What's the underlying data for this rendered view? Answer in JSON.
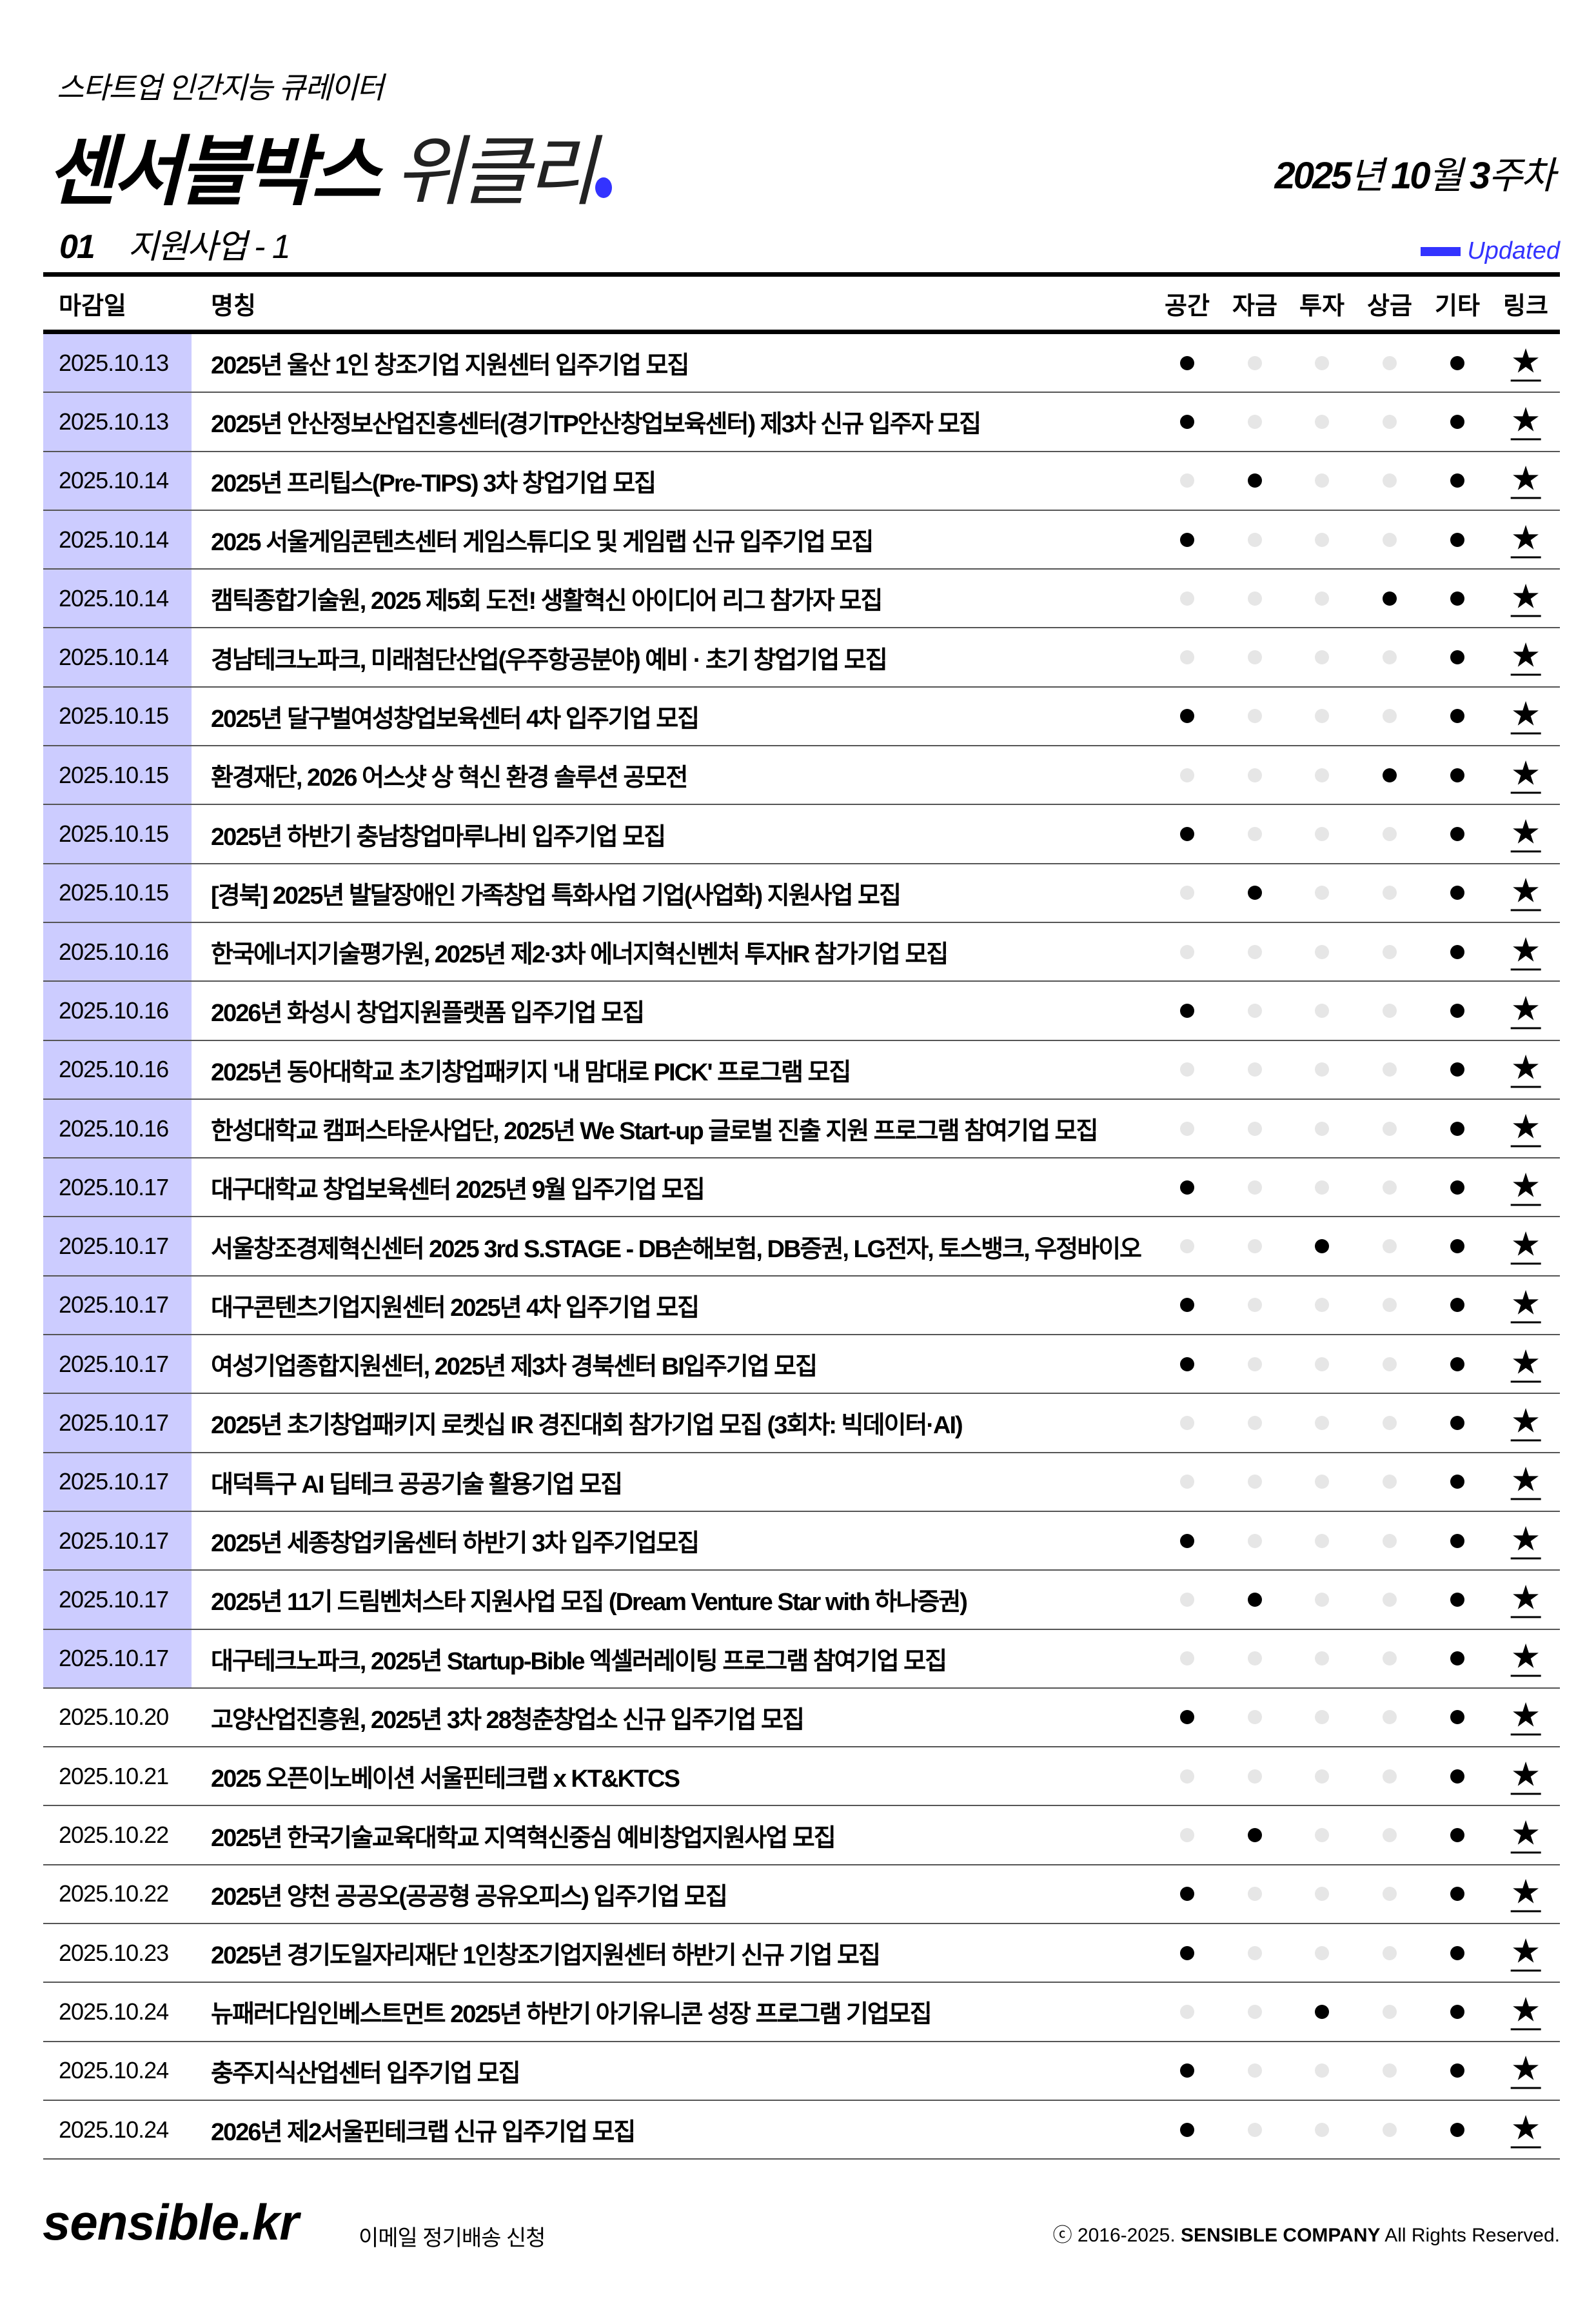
{
  "header": {
    "subtitle": "스타트업 인간지능 큐레이터",
    "title_bold": "센서블박스",
    "title_light": "위클리",
    "week_year": "2025",
    "week_year_unit": "년",
    "week_month": "10",
    "week_month_unit": "월",
    "week_num": "3",
    "week_num_unit": "주차"
  },
  "section": {
    "number": "01",
    "title": "지원사업",
    "suffix": "- 1",
    "updated_label": "Updated"
  },
  "colors": {
    "accent": "#3333ff",
    "updated_date_bg": "#ccccff"
  },
  "table": {
    "columns": {
      "date": "마감일",
      "name": "명칭",
      "space": "공간",
      "fund": "자금",
      "invest": "투자",
      "prize": "상금",
      "etc": "기타",
      "link": "링크"
    },
    "link_icon": "star-icon",
    "rows": [
      {
        "date": "2025.10.13",
        "name": "2025년 울산 1인 창조기업 지원센터 입주기업 모집",
        "updated": true,
        "flags": [
          1,
          0,
          0,
          0,
          1
        ]
      },
      {
        "date": "2025.10.13",
        "name": "2025년 안산정보산업진흥센터(경기TP안산창업보육센터) 제3차 신규 입주자 모집",
        "updated": true,
        "flags": [
          1,
          0,
          0,
          0,
          1
        ]
      },
      {
        "date": "2025.10.14",
        "name": "2025년 프리팁스(Pre-TIPS) 3차 창업기업 모집",
        "updated": true,
        "flags": [
          0,
          1,
          0,
          0,
          1
        ]
      },
      {
        "date": "2025.10.14",
        "name": "2025 서울게임콘텐츠센터 게임스튜디오 및 게임랩 신규 입주기업 모집",
        "updated": true,
        "flags": [
          1,
          0,
          0,
          0,
          1
        ]
      },
      {
        "date": "2025.10.14",
        "name": "캠틱종합기술원, 2025 제5회 도전! 생활혁신 아이디어 리그 참가자 모집",
        "updated": true,
        "flags": [
          0,
          0,
          0,
          1,
          1
        ]
      },
      {
        "date": "2025.10.14",
        "name": "경남테크노파크, 미래첨단산업(우주항공분야) 예비 · 초기 창업기업 모집",
        "updated": true,
        "flags": [
          0,
          0,
          0,
          0,
          1
        ]
      },
      {
        "date": "2025.10.15",
        "name": "2025년 달구벌여성창업보육센터 4차 입주기업 모집",
        "updated": true,
        "flags": [
          1,
          0,
          0,
          0,
          1
        ]
      },
      {
        "date": "2025.10.15",
        "name": "환경재단, 2026 어스샷 상 혁신 환경 솔루션 공모전",
        "updated": true,
        "flags": [
          0,
          0,
          0,
          1,
          1
        ]
      },
      {
        "date": "2025.10.15",
        "name": "2025년 하반기 충남창업마루나비 입주기업 모집",
        "updated": true,
        "flags": [
          1,
          0,
          0,
          0,
          1
        ]
      },
      {
        "date": "2025.10.15",
        "name": "[경북] 2025년 발달장애인 가족창업 특화사업 기업(사업화) 지원사업 모집",
        "updated": true,
        "flags": [
          0,
          1,
          0,
          0,
          1
        ]
      },
      {
        "date": "2025.10.16",
        "name": "한국에너지기술평가원, 2025년 제2·3차 에너지혁신벤처 투자IR 참가기업 모집",
        "updated": true,
        "flags": [
          0,
          0,
          0,
          0,
          1
        ]
      },
      {
        "date": "2025.10.16",
        "name": "2026년 화성시 창업지원플랫폼 입주기업 모집",
        "updated": true,
        "flags": [
          1,
          0,
          0,
          0,
          1
        ]
      },
      {
        "date": "2025.10.16",
        "name": "2025년 동아대학교 초기창업패키지 '내 맘대로 PICK' 프로그램 모집",
        "updated": true,
        "flags": [
          0,
          0,
          0,
          0,
          1
        ]
      },
      {
        "date": "2025.10.16",
        "name": "한성대학교 캠퍼스타운사업단, 2025년 We Start-up 글로벌 진출 지원 프로그램 참여기업 모집",
        "updated": true,
        "flags": [
          0,
          0,
          0,
          0,
          1
        ]
      },
      {
        "date": "2025.10.17",
        "name": "대구대학교 창업보육센터 2025년 9월 입주기업 모집",
        "updated": true,
        "flags": [
          1,
          0,
          0,
          0,
          1
        ]
      },
      {
        "date": "2025.10.17",
        "name": "서울창조경제혁신센터 2025 3rd S.STAGE - DB손해보험, DB증권, LG전자, 토스뱅크, 우정바이오",
        "updated": true,
        "flags": [
          0,
          0,
          1,
          0,
          1
        ]
      },
      {
        "date": "2025.10.17",
        "name": "대구콘텐츠기업지원센터 2025년 4차 입주기업 모집",
        "updated": true,
        "flags": [
          1,
          0,
          0,
          0,
          1
        ]
      },
      {
        "date": "2025.10.17",
        "name": "여성기업종합지원센터, 2025년 제3차 경북센터 BI입주기업 모집",
        "updated": true,
        "flags": [
          1,
          0,
          0,
          0,
          1
        ]
      },
      {
        "date": "2025.10.17",
        "name": "2025년 초기창업패키지 로켓십 IR 경진대회 참가기업 모집 (3회차: 빅데이터·AI)",
        "updated": true,
        "flags": [
          0,
          0,
          0,
          0,
          1
        ]
      },
      {
        "date": "2025.10.17",
        "name": "대덕특구 AI 딥테크 공공기술 활용기업 모집",
        "updated": true,
        "flags": [
          0,
          0,
          0,
          0,
          1
        ]
      },
      {
        "date": "2025.10.17",
        "name": "2025년 세종창업키움센터 하반기 3차 입주기업모집",
        "updated": true,
        "flags": [
          1,
          0,
          0,
          0,
          1
        ]
      },
      {
        "date": "2025.10.17",
        "name": "2025년 11기 드림벤처스타 지원사업 모집 (Dream Venture Star with 하나증권)",
        "updated": true,
        "flags": [
          0,
          1,
          0,
          0,
          1
        ]
      },
      {
        "date": "2025.10.17",
        "name": "대구테크노파크, 2025년 Startup-Bible 엑셀러레이팅 프로그램 참여기업 모집",
        "updated": true,
        "flags": [
          0,
          0,
          0,
          0,
          1
        ]
      },
      {
        "date": "2025.10.20",
        "name": "고양산업진흥원, 2025년 3차 28청춘창업소 신규 입주기업 모집",
        "updated": false,
        "flags": [
          1,
          0,
          0,
          0,
          1
        ]
      },
      {
        "date": "2025.10.21",
        "name": "2025 오픈이노베이션 서울핀테크랩 x KT&KTCS",
        "updated": false,
        "flags": [
          0,
          0,
          0,
          0,
          1
        ]
      },
      {
        "date": "2025.10.22",
        "name": "2025년 한국기술교육대학교 지역혁신중심 예비창업지원사업 모집",
        "updated": false,
        "flags": [
          0,
          1,
          0,
          0,
          1
        ]
      },
      {
        "date": "2025.10.22",
        "name": "2025년 양천 공공오(공공형 공유오피스) 입주기업 모집",
        "updated": false,
        "flags": [
          1,
          0,
          0,
          0,
          1
        ]
      },
      {
        "date": "2025.10.23",
        "name": "2025년 경기도일자리재단 1인창조기업지원센터 하반기 신규 기업 모집",
        "updated": false,
        "flags": [
          1,
          0,
          0,
          0,
          1
        ]
      },
      {
        "date": "2025.10.24",
        "name": "뉴패러다임인베스트먼트 2025년 하반기 아기유니콘 성장 프로그램 기업모집",
        "updated": false,
        "flags": [
          0,
          0,
          1,
          0,
          1
        ]
      },
      {
        "date": "2025.10.24",
        "name": "충주지식산업센터 입주기업 모집",
        "updated": false,
        "flags": [
          1,
          0,
          0,
          0,
          1
        ]
      },
      {
        "date": "2025.10.24",
        "name": "2026년 제2서울핀테크랩 신규 입주기업 모집",
        "updated": false,
        "flags": [
          1,
          0,
          0,
          0,
          1
        ]
      }
    ]
  },
  "footer": {
    "logo": "sensible.kr",
    "subscribe": "이메일 정기배송 신청",
    "copyright_prefix": "ⓒ 2016-2025.",
    "company": "SENSIBLE COMPANY",
    "rights": "All  Rights  Reserved."
  }
}
